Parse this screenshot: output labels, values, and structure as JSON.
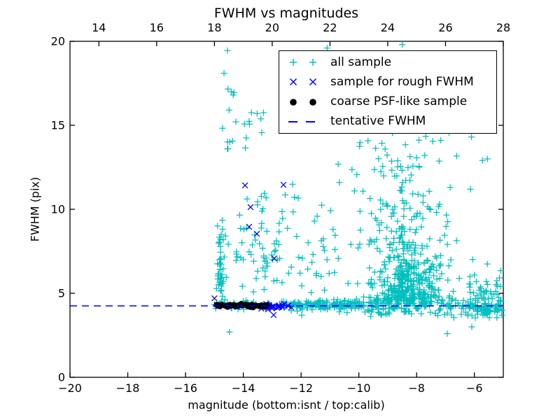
{
  "figure": {
    "title": "FWHM vs magnitudes",
    "background": "#ffffff"
  },
  "axes": {
    "xlabel": "magnitude (bottom:isnt / top:calib)",
    "ylabel": "FWHM (pix)",
    "x_bottom": {
      "range": [
        -20,
        -5
      ],
      "tick_values": [
        -20,
        -18,
        -16,
        -14,
        -12,
        -10,
        -8,
        -6
      ],
      "tick_labels": [
        "−20",
        "−18",
        "−16",
        "−14",
        "−12",
        "−10",
        "−8",
        "−6"
      ]
    },
    "x_top": {
      "range": [
        13,
        28
      ],
      "tick_values": [
        14,
        16,
        18,
        20,
        22,
        24,
        26,
        28
      ],
      "tick_labels": [
        "14",
        "16",
        "18",
        "20",
        "22",
        "24",
        "26",
        "28"
      ]
    },
    "y": {
      "range": [
        0,
        20
      ],
      "tick_values": [
        0,
        5,
        10,
        15,
        20
      ],
      "tick_labels": [
        "0",
        "5",
        "10",
        "15",
        "20"
      ]
    },
    "frame_color": "#000000"
  },
  "legend": {
    "entries": [
      {
        "label": "all sample"
      },
      {
        "label": "sample for rough FWHM"
      },
      {
        "label": "coarse PSF-like sample"
      },
      {
        "label": "tentative FWHM"
      }
    ]
  },
  "chart_data": {
    "type": "scatter",
    "title": "FWHM vs magnitudes",
    "xlabel": "magnitude (bottom:isnt / top:calib)",
    "ylabel": "FWHM (pix)",
    "xlim_bottom": [
      -20,
      -5
    ],
    "xlim_top": [
      13,
      28
    ],
    "ylim": [
      0,
      20
    ],
    "grid": false,
    "legend_position": "upper right",
    "series": [
      {
        "name": "all sample",
        "marker": "plus",
        "color": "#00bfbf",
        "points": [
          [
            -14.55,
            19.45
          ],
          [
            -14.67,
            18.1
          ],
          [
            -14.42,
            17.0
          ],
          [
            -14.35,
            16.8
          ],
          [
            -13.72,
            15.75
          ],
          [
            -13.52,
            15.7
          ],
          [
            -13.9,
            14.25
          ],
          [
            -14.55,
            13.6
          ],
          [
            -11.1,
            19.6
          ],
          [
            -8.5,
            19.8
          ],
          [
            -9.25,
            17.3
          ],
          [
            -5.55,
            13.0
          ],
          [
            -6.84,
            11.3
          ],
          [
            -6.14,
            11.2
          ],
          [
            -14.48,
            2.7
          ],
          [
            -11.98,
            3.7
          ],
          [
            -6.94,
            2.6
          ],
          [
            -6.09,
            3.0
          ],
          [
            -5.62,
            3.85
          ]
        ],
        "clusters": [
          {
            "n": 34,
            "x": {
              "d": "n",
              "m": -14.8,
              "s": 0.055
            },
            "y": {
              "d": "hn",
              "m": 4.55,
              "s": 2.2
            },
            "clampy": [
              4.5,
              10.6
            ]
          },
          {
            "n": 10,
            "x": {
              "d": "n",
              "m": -14.72,
              "s": 0.1
            },
            "y": {
              "d": "u",
              "a": 5.5,
              "b": 9.5
            }
          },
          {
            "n": 9,
            "x": {
              "d": "u",
              "a": -14.75,
              "b": -14.25
            },
            "y": {
              "d": "u",
              "a": 13.3,
              "b": 18.2
            }
          },
          {
            "n": 7,
            "x": {
              "d": "u",
              "a": -14.0,
              "b": -13.3
            },
            "y": {
              "d": "u",
              "a": 13.5,
              "b": 15.9
            }
          },
          {
            "n": 65,
            "x": {
              "d": "u",
              "a": -14.35,
              "b": -12.3
            },
            "y": {
              "d": "n",
              "m": 7.6,
              "s": 1.7
            },
            "clampy": [
              4.9,
              12.2
            ]
          },
          {
            "n": 40,
            "x": {
              "d": "u",
              "a": -15.02,
              "b": -12.4
            },
            "y": {
              "d": "n",
              "m": 4.33,
              "s": 0.16
            },
            "clampy": [
              3.95,
              4.75
            ]
          },
          {
            "n": 150,
            "x": {
              "d": "u",
              "a": -12.4,
              "b": -9.8
            },
            "y": {
              "d": "n",
              "m": 4.3,
              "s": 0.16
            },
            "clampy": [
              3.8,
              4.9
            ]
          },
          {
            "n": 190,
            "x": {
              "d": "u",
              "a": -9.8,
              "b": -5.05
            },
            "y": {
              "d": "n",
              "m": 4.2,
              "s": 0.28
            },
            "clampy": [
              3.2,
              5.0
            ]
          },
          {
            "n": 320,
            "x": {
              "d": "n",
              "m": -8.25,
              "s": 0.6
            },
            "clampx": [
              -9.9,
              -6.2
            ],
            "y": {
              "d": "hn",
              "m": 4.35,
              "s": 1.5
            },
            "clampy": [
              4.3,
              9.5
            ]
          },
          {
            "n": 130,
            "x": {
              "d": "n",
              "m": -8.5,
              "s": 0.75
            },
            "clampx": [
              -10.3,
              -6.1
            ],
            "y": {
              "d": "n",
              "m": 9.0,
              "s": 1.7
            },
            "clampy": [
              6.2,
              12.6
            ]
          },
          {
            "n": 34,
            "x": {
              "d": "n",
              "m": -8.35,
              "s": 0.95
            },
            "clampx": [
              -10.5,
              -6.0
            ],
            "y": {
              "d": "u",
              "a": 12.2,
              "b": 15.3
            }
          },
          {
            "n": 40,
            "x": {
              "d": "u",
              "a": -12.3,
              "b": -9.9
            },
            "y": {
              "d": "n",
              "m": 8.2,
              "s": 2.3
            },
            "clampy": [
              5.0,
              14.9
            ]
          },
          {
            "n": 14,
            "x": {
              "d": "u",
              "a": -9.6,
              "b": -5.3
            },
            "y": {
              "d": "u",
              "a": 12.6,
              "b": 17.5
            }
          },
          {
            "n": 60,
            "x": {
              "d": "u",
              "a": -6.2,
              "b": -5.02
            },
            "y": {
              "d": "n",
              "m": 4.7,
              "s": 0.9
            },
            "clampy": [
              3.5,
              7.8
            ]
          }
        ]
      },
      {
        "name": "sample for rough FWHM",
        "marker": "x",
        "color": "#0000ff",
        "points": [
          [
            -13.94,
            11.42
          ],
          [
            -12.61,
            11.46
          ],
          [
            -13.75,
            10.13
          ],
          [
            -13.8,
            8.96
          ],
          [
            -13.53,
            8.54
          ],
          [
            -12.93,
            7.08
          ],
          [
            -15.0,
            4.7
          ],
          [
            -12.95,
            3.71
          ]
        ],
        "clusters": [
          {
            "n": 26,
            "x": {
              "d": "u",
              "a": -13.38,
              "b": -12.18
            },
            "y": {
              "d": "n",
              "m": 4.22,
              "s": 0.08
            },
            "clampy": [
              4.02,
              4.42
            ]
          },
          {
            "n": 5,
            "x": {
              "d": "u",
              "a": -14.9,
              "b": -13.45
            },
            "y": {
              "d": "n",
              "m": 4.2,
              "s": 0.07
            }
          }
        ]
      },
      {
        "name": "coarse PSF-like sample",
        "marker": "dot",
        "color": "#000000",
        "points": [],
        "clusters": [
          {
            "n": 34,
            "x": {
              "d": "even",
              "a": -14.93,
              "b": -13.18,
              "j": 0.04
            },
            "y": {
              "d": "n",
              "m": 4.28,
              "s": 0.045
            },
            "clampy": [
              4.16,
              4.4
            ]
          }
        ]
      },
      {
        "name": "tentative FWHM",
        "type": "hline",
        "y": 4.25,
        "x_range": [
          -20,
          -5
        ],
        "color": "#0000ff",
        "linestyle": "dashed"
      }
    ]
  }
}
